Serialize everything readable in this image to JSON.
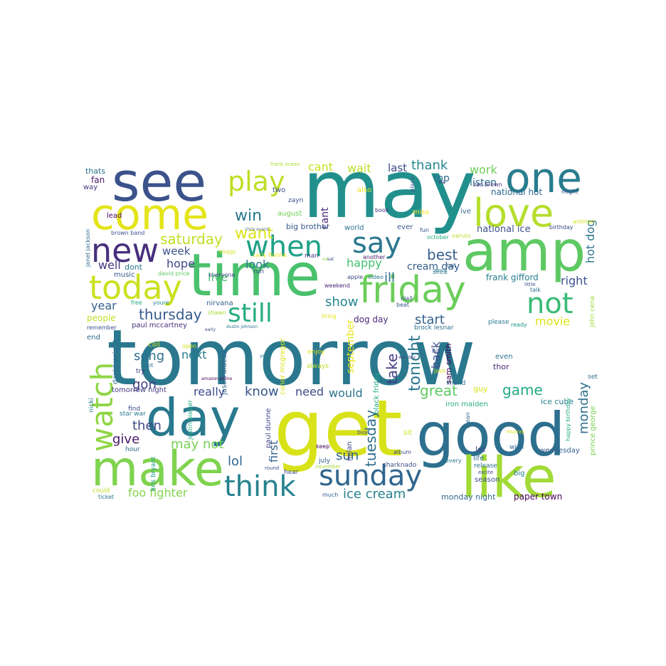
{
  "words": [
    {
      "text": "tomorrow",
      "color": "#2a788e"
    },
    {
      "text": "may",
      "color": "#21908d"
    },
    {
      "text": "amp",
      "color": "#5ec962"
    },
    {
      "text": "time",
      "color": "#4ac16d"
    },
    {
      "text": "get",
      "color": "#d8e219"
    },
    {
      "text": "good",
      "color": "#2d6f8e"
    },
    {
      "text": "like",
      "color": "#a2da37"
    },
    {
      "text": "see",
      "color": "#3b528b"
    },
    {
      "text": "come",
      "color": "#e4e419"
    },
    {
      "text": "day",
      "color": "#29798e"
    },
    {
      "text": "make",
      "color": "#7fd34e"
    },
    {
      "text": "one",
      "color": "#287d8e"
    },
    {
      "text": "love",
      "color": "#b5de2b"
    },
    {
      "text": "friday",
      "color": "#6ccd5a"
    },
    {
      "text": "new",
      "color": "#472f7d"
    },
    {
      "text": "today",
      "color": "#cae11f"
    },
    {
      "text": "when",
      "color": "#1fa187"
    },
    {
      "text": "say",
      "color": "#2a778e"
    },
    {
      "text": "play",
      "color": "#bddf26"
    },
    {
      "text": "watch",
      "color": "#8ed645"
    },
    {
      "text": "sunday",
      "color": "#31668e"
    },
    {
      "text": "think",
      "color": "#26828e"
    },
    {
      "text": "not",
      "color": "#3aba76"
    },
    {
      "text": "still",
      "color": "#27ad81"
    },
    {
      "text": "win",
      "color": "#297b8e"
    },
    {
      "text": "want",
      "color": "#dde318"
    },
    {
      "text": "saturday",
      "color": "#c0df25"
    },
    {
      "text": "cant",
      "color": "#c8e020"
    },
    {
      "text": "wait",
      "color": "#bade28"
    },
    {
      "text": "last",
      "color": "#3e4a89"
    },
    {
      "text": "thank",
      "color": "#25848e"
    },
    {
      "text": "work",
      "color": "#6ece58"
    },
    {
      "text": "listen",
      "color": "#2c728e"
    },
    {
      "text": "top",
      "color": "#2f6b8e"
    },
    {
      "text": "national hot",
      "color": "#306a8e"
    },
    {
      "text": "national ice",
      "color": "#3b518b"
    },
    {
      "text": "best",
      "color": "#355f8d"
    },
    {
      "text": "hot dog",
      "color": "#2c738e"
    },
    {
      "text": "happy",
      "color": "#44bf70"
    },
    {
      "text": "cream day",
      "color": "#365d8d"
    },
    {
      "text": "show",
      "color": "#24868e"
    },
    {
      "text": "start",
      "color": "#34618d"
    },
    {
      "text": "thursday",
      "color": "#375b8d"
    },
    {
      "text": "week",
      "color": "#3b528b"
    },
    {
      "text": "hope",
      "color": "#404588"
    },
    {
      "text": "well",
      "color": "#443983"
    },
    {
      "text": "look",
      "color": "#2a788e"
    },
    {
      "text": "live",
      "color": "#48c16e"
    },
    {
      "text": "year",
      "color": "#33638d"
    },
    {
      "text": "song",
      "color": "#2e6e8e"
    },
    {
      "text": "next",
      "color": "#297a8e"
    },
    {
      "text": "gon",
      "color": "#424086"
    },
    {
      "text": "then",
      "color": "#3f4889"
    },
    {
      "text": "give",
      "color": "#481668"
    },
    {
      "text": "may not",
      "color": "#75d054"
    },
    {
      "text": "lol",
      "color": "#32658e"
    },
    {
      "text": "sun",
      "color": "#32648e"
    },
    {
      "text": "tuesday",
      "color": "#2e6d8e"
    },
    {
      "text": "ice cream",
      "color": "#26828e"
    },
    {
      "text": "foo fighter",
      "color": "#84d44b"
    },
    {
      "text": "really",
      "color": "#3e4c8a"
    },
    {
      "text": "know",
      "color": "#39558c"
    },
    {
      "text": "need",
      "color": "#3e4989"
    },
    {
      "text": "would",
      "color": "#2b748e"
    },
    {
      "text": "great",
      "color": "#5ec962"
    },
    {
      "text": "game",
      "color": "#23a983"
    },
    {
      "text": "monday",
      "color": "#2d718e"
    },
    {
      "text": "tonight",
      "color": "#2b758e"
    },
    {
      "text": "take",
      "color": "#433e85"
    },
    {
      "text": "back",
      "color": "#3d4e8a"
    },
    {
      "text": "first",
      "color": "#34618d"
    },
    {
      "text": "movie",
      "color": "#dde318"
    },
    {
      "text": "right",
      "color": "#3b528b"
    },
    {
      "text": "dog day",
      "color": "#482878"
    },
    {
      "text": "ill",
      "color": "#2d708e"
    },
    {
      "text": "september",
      "color": "#e7e419"
    },
    {
      "text": "sam smith",
      "color": "#440154"
    },
    {
      "text": "frank gifford",
      "color": "#287c8e"
    },
    {
      "text": "people",
      "color": "#c2df23"
    },
    {
      "text": "music",
      "color": "#38588c"
    },
    {
      "text": "dont",
      "color": "#2a788e"
    },
    {
      "text": "thats",
      "color": "#2c718e"
    },
    {
      "text": "fan",
      "color": "#481769"
    },
    {
      "text": "way",
      "color": "#46327e"
    },
    {
      "text": "lead",
      "color": "#450457"
    },
    {
      "text": "two",
      "color": "#3e4c8a"
    },
    {
      "text": "zayn",
      "color": "#3d4d8a"
    },
    {
      "text": "also",
      "color": "#e2e418"
    },
    {
      "text": "august",
      "color": "#6ece58"
    },
    {
      "text": "cant",
      "color": "#482374"
    },
    {
      "text": "book",
      "color": "#46327e"
    },
    {
      "text": "miss",
      "color": "#fde725"
    },
    {
      "text": "ive",
      "color": "#31668e"
    },
    {
      "text": "fun",
      "color": "#3b528b"
    },
    {
      "text": "ever",
      "color": "#39568c"
    },
    {
      "text": "world",
      "color": "#2c728e"
    },
    {
      "text": "big brother",
      "color": "#37598c"
    },
    {
      "text": "man",
      "color": "#453882"
    },
    {
      "text": "another",
      "color": "#481a6c"
    },
    {
      "text": "apple",
      "color": "#3e4a89"
    },
    {
      "text": "video",
      "color": "#2a768e"
    },
    {
      "text": "since",
      "color": "#29798e"
    },
    {
      "text": "run",
      "color": "#3e4c8a"
    },
    {
      "text": "weekend",
      "color": "#482475"
    },
    {
      "text": "niall",
      "color": "#3d4e8a"
    },
    {
      "text": "beat",
      "color": "#3b528b"
    },
    {
      "text": "talk",
      "color": "#2d708e"
    },
    {
      "text": "tell",
      "color": "#32648e"
    },
    {
      "text": "nirvana",
      "color": "#355e8d"
    },
    {
      "text": "shawn",
      "color": "#a8db34"
    },
    {
      "text": "free",
      "color": "#25ab82"
    },
    {
      "text": "youre",
      "color": "#24868e"
    },
    {
      "text": "remember",
      "color": "#3b528b"
    },
    {
      "text": "paul mccartney",
      "color": "#472d7b"
    },
    {
      "text": "end",
      "color": "#31688e"
    },
    {
      "text": "call",
      "color": "#c0df25"
    },
    {
      "text": "open",
      "color": "#cde11d"
    },
    {
      "text": "lot",
      "color": "#2c728e"
    },
    {
      "text": "try",
      "color": "#453781"
    },
    {
      "text": "david wright",
      "color": "#2f6c8e"
    },
    {
      "text": "jason aldean",
      "color": "#33638d"
    },
    {
      "text": "conor mcgregor",
      "color": "#d8e219"
    },
    {
      "text": "enjoy",
      "color": "#e5e419"
    },
    {
      "text": "always",
      "color": "#bddf26"
    },
    {
      "text": "black friday",
      "color": "#23a983"
    },
    {
      "text": "hit",
      "color": "#3a538b"
    },
    {
      "text": "friend",
      "color": "#2e6f8e"
    },
    {
      "text": "guy",
      "color": "#d2e21b"
    },
    {
      "text": "even",
      "color": "#2a768e"
    },
    {
      "text": "thor",
      "color": "#482878"
    },
    {
      "text": "ice cube",
      "color": "#26828e"
    },
    {
      "text": "iron maiden",
      "color": "#2ab07f"
    },
    {
      "text": "let",
      "color": "#404688"
    },
    {
      "text": "wish",
      "color": "#32648e"
    },
    {
      "text": "wednesday",
      "color": "#355e8d"
    },
    {
      "text": "prince george",
      "color": "#7ad151"
    },
    {
      "text": "set",
      "color": "#2e6e8e"
    },
    {
      "text": "john cena",
      "color": "#a0da39"
    },
    {
      "text": "ready",
      "color": "#1f968b"
    },
    {
      "text": "please",
      "color": "#2a788e"
    },
    {
      "text": "brock lesnar",
      "color": "#2e6e8e"
    },
    {
      "text": "tomorrow night",
      "color": "#453882"
    },
    {
      "text": "find",
      "color": "#3e4989"
    },
    {
      "text": "star war",
      "color": "#29798e"
    },
    {
      "text": "nicki",
      "color": "#287c8e"
    },
    {
      "text": "justin bieber",
      "color": "#22a785"
    },
    {
      "text": "paul dunne",
      "color": "#414487"
    },
    {
      "text": "hour",
      "color": "#31688e"
    },
    {
      "text": "kris bryant",
      "color": "#1e9b8a"
    },
    {
      "text": "could",
      "color": "#bade28"
    },
    {
      "text": "ticket",
      "color": "#2b758e"
    },
    {
      "text": "keep",
      "color": "#440154"
    },
    {
      "text": "july",
      "color": "#34608d"
    },
    {
      "text": "november",
      "color": "#a0da39"
    },
    {
      "text": "milan",
      "color": "#404688"
    },
    {
      "text": "album",
      "color": "#3e4a89"
    },
    {
      "text": "buy",
      "color": "#3e4989"
    },
    {
      "text": "sit",
      "color": "#d2e21b"
    },
    {
      "text": "sharknado",
      "color": "#3d4d8a"
    },
    {
      "text": "every",
      "color": "#2b758e"
    },
    {
      "text": "life",
      "color": "#2e6d8e"
    },
    {
      "text": "release",
      "color": "#2c728e"
    },
    {
      "text": "excite",
      "color": "#404688"
    },
    {
      "text": "season",
      "color": "#3e4c8a"
    },
    {
      "text": "big",
      "color": "#287d8e"
    },
    {
      "text": "mean",
      "color": "#2f6b8e"
    },
    {
      "text": "hear",
      "color": "#3f4788"
    },
    {
      "text": "round",
      "color": "#3d4e8a"
    },
    {
      "text": "much",
      "color": "#34618d"
    },
    {
      "text": "monday night",
      "color": "#31688e"
    },
    {
      "text": "paper town",
      "color": "#440154"
    },
    {
      "text": "amazon prime",
      "color": "#440154"
    },
    {
      "text": "dustin johnson",
      "color": "#2c728e"
    },
    {
      "text": "early",
      "color": "#404688"
    },
    {
      "text": "david price",
      "color": "#5cc863"
    },
    {
      "text": "carly fiorina",
      "color": "#e5e419"
    },
    {
      "text": "chris evans",
      "color": "#4e6e8e"
    },
    {
      "text": "brown band",
      "color": "#3b528b"
    },
    {
      "text": "janet jackson",
      "color": "#31688e"
    },
    {
      "text": "everyone",
      "color": "#414487"
    },
    {
      "text": "frank ocean",
      "color": "#addc30"
    },
    {
      "text": "since",
      "color": "#2a788e"
    },
    {
      "text": "place",
      "color": "#38588c"
    },
    {
      "text": "war day",
      "color": "#3e4a89"
    },
    {
      "text": "zac brown",
      "color": "#46327e"
    },
    {
      "text": "might",
      "color": "#3b528b"
    },
    {
      "text": "via",
      "color": "#482677"
    },
    {
      "text": "october",
      "color": "#27ad81"
    },
    {
      "text": "naruto",
      "color": "#bddf26"
    },
    {
      "text": "antman",
      "color": "#d0e11c"
    },
    {
      "text": "birthday",
      "color": "#3d4d8a"
    },
    {
      "text": "happy birthday",
      "color": "#23a983"
    },
    {
      "text": "murray",
      "color": "#dde318"
    },
    {
      "text": "little",
      "color": "#3b528b"
    },
    {
      "text": "thing",
      "color": "#dde318"
    },
    {
      "text": "sat",
      "color": "#8ed645"
    },
    {
      "text": "yes",
      "color": "#2a788e"
    },
    {
      "text": "josh",
      "color": "#d8e219"
    },
    {
      "text": "sat",
      "color": "#3e4c8a"
    },
    {
      "text": "bloggy",
      "color": "#d2e21b"
    }
  ]
}
